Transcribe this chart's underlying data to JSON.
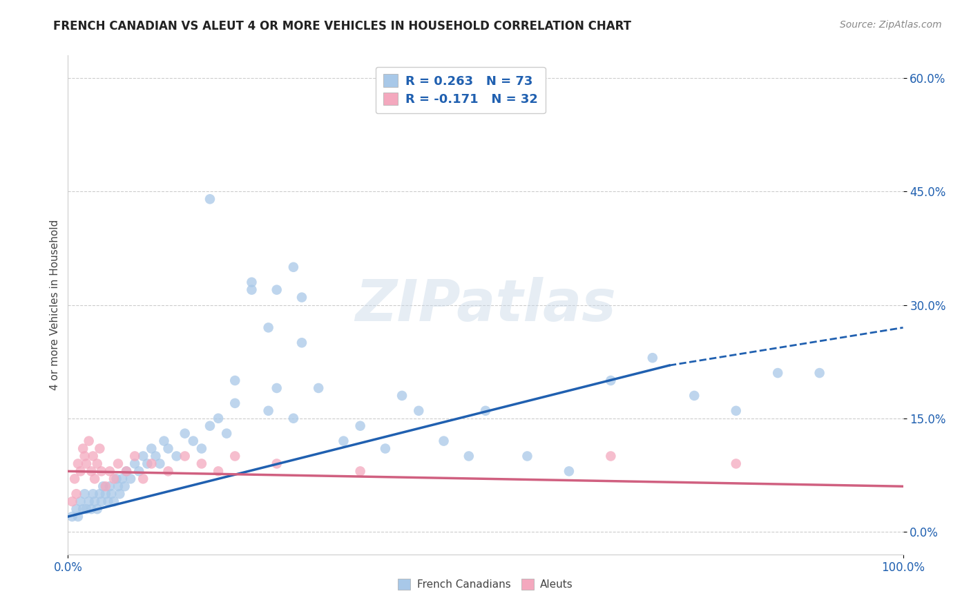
{
  "title": "FRENCH CANADIAN VS ALEUT 4 OR MORE VEHICLES IN HOUSEHOLD CORRELATION CHART",
  "source": "Source: ZipAtlas.com",
  "ylabel_label": "4 or more Vehicles in Household",
  "xlim": [
    0,
    100
  ],
  "ylim": [
    -3,
    63
  ],
  "blue_R": 0.263,
  "blue_N": 73,
  "pink_R": -0.171,
  "pink_N": 32,
  "blue_color": "#a8c8e8",
  "pink_color": "#f4a8be",
  "blue_line_color": "#2060b0",
  "pink_line_color": "#d06080",
  "legend_text_color": "#2060b0",
  "background_color": "#ffffff",
  "grid_color": "#cccccc",
  "blue_scatter_x": [
    0.5,
    1.0,
    1.2,
    1.5,
    1.8,
    2.0,
    2.2,
    2.5,
    2.8,
    3.0,
    3.2,
    3.5,
    3.8,
    4.0,
    4.2,
    4.5,
    4.8,
    5.0,
    5.2,
    5.5,
    5.8,
    6.0,
    6.2,
    6.5,
    6.8,
    7.0,
    7.5,
    8.0,
    8.5,
    9.0,
    9.5,
    10.0,
    10.5,
    11.0,
    11.5,
    12.0,
    13.0,
    14.0,
    15.0,
    16.0,
    17.0,
    18.0,
    19.0,
    20.0,
    22.0,
    24.0,
    25.0,
    27.0,
    28.0,
    30.0,
    33.0,
    35.0,
    38.0,
    40.0,
    42.0,
    45.0,
    48.0,
    50.0,
    55.0,
    60.0,
    65.0,
    70.0,
    75.0,
    80.0,
    85.0,
    90.0,
    17.0,
    20.0,
    22.0,
    24.0,
    25.0,
    27.0,
    28.0
  ],
  "blue_scatter_y": [
    2,
    3,
    2,
    4,
    3,
    5,
    3,
    4,
    3,
    5,
    4,
    3,
    5,
    4,
    6,
    5,
    4,
    6,
    5,
    4,
    7,
    6,
    5,
    7,
    6,
    8,
    7,
    9,
    8,
    10,
    9,
    11,
    10,
    9,
    12,
    11,
    10,
    13,
    12,
    11,
    14,
    15,
    13,
    20,
    33,
    16,
    32,
    35,
    31,
    19,
    12,
    14,
    11,
    18,
    16,
    12,
    10,
    16,
    10,
    8,
    20,
    23,
    18,
    16,
    21,
    21,
    44,
    17,
    32,
    27,
    19,
    15,
    25
  ],
  "pink_scatter_x": [
    0.5,
    0.8,
    1.0,
    1.2,
    1.5,
    1.8,
    2.0,
    2.2,
    2.5,
    2.8,
    3.0,
    3.2,
    3.5,
    3.8,
    4.0,
    4.5,
    5.0,
    5.5,
    6.0,
    7.0,
    8.0,
    9.0,
    10.0,
    12.0,
    14.0,
    16.0,
    18.0,
    20.0,
    25.0,
    35.0,
    65.0,
    80.0
  ],
  "pink_scatter_y": [
    4,
    7,
    5,
    9,
    8,
    11,
    10,
    9,
    12,
    8,
    10,
    7,
    9,
    11,
    8,
    6,
    8,
    7,
    9,
    8,
    10,
    7,
    9,
    8,
    10,
    9,
    8,
    10,
    9,
    8,
    10,
    9
  ],
  "blue_solid_x0": 0,
  "blue_solid_x1": 72,
  "blue_solid_y0": 2,
  "blue_solid_y1": 22,
  "blue_dashed_x0": 72,
  "blue_dashed_x1": 100,
  "blue_dashed_y0": 22,
  "blue_dashed_y1": 27,
  "pink_x0": 0,
  "pink_x1": 100,
  "pink_y0": 8,
  "pink_y1": 6,
  "xticks": [
    0,
    100
  ],
  "xtick_labels": [
    "0.0%",
    "100.0%"
  ],
  "yticks": [
    0,
    15,
    30,
    45,
    60
  ],
  "ytick_labels": [
    "0.0%",
    "15.0%",
    "30.0%",
    "45.0%",
    "60.0%"
  ],
  "title_fontsize": 12,
  "tick_fontsize": 12,
  "legend_fontsize": 13,
  "ylabel_fontsize": 11,
  "source_fontsize": 10,
  "watermark": "ZIPatlas"
}
